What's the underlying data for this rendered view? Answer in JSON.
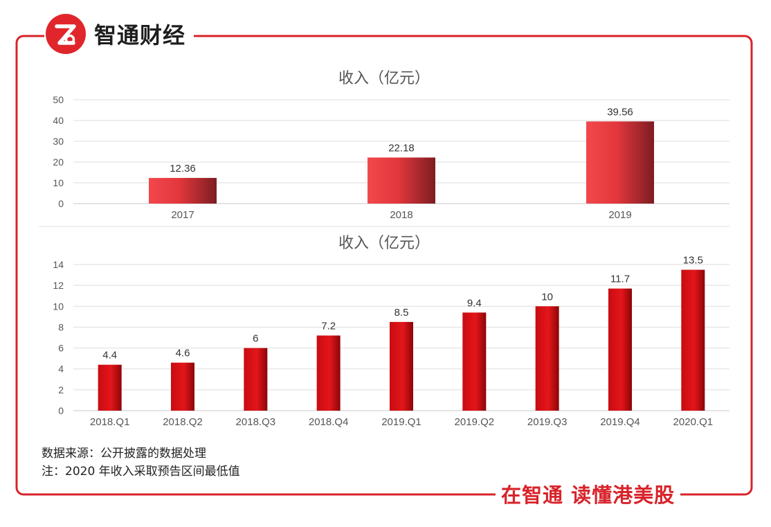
{
  "brand": {
    "name": "智通财经",
    "logo_glyph": "Z",
    "slogan": "在智通 读懂港美股",
    "accent": "#d8232a"
  },
  "notes": {
    "source": "数据来源：公开披露的数据处理",
    "note": "注：2020 年收入采取预告区间最低值"
  },
  "chart_data": [
    {
      "type": "bar",
      "title": "收入（亿元）",
      "categories": [
        "2017",
        "2018",
        "2019"
      ],
      "values": [
        12.36,
        22.18,
        39.56
      ],
      "value_labels": [
        "12.36",
        "22.18",
        "39.56"
      ],
      "yticks": [
        "0",
        "10",
        "20",
        "30",
        "40",
        "50"
      ],
      "ylim": [
        0,
        50
      ],
      "grid": true,
      "xlabel": "",
      "ylabel": ""
    },
    {
      "type": "bar",
      "title": "收入（亿元）",
      "categories": [
        "2018.Q1",
        "2018.Q2",
        "2018.Q3",
        "2018.Q4",
        "2019.Q1",
        "2019.Q2",
        "2019.Q3",
        "2019.Q4",
        "2020.Q1"
      ],
      "values": [
        4.4,
        4.6,
        6,
        7.2,
        8.5,
        9.4,
        10,
        11.7,
        13.5
      ],
      "value_labels": [
        "4.4",
        "4.6",
        "6",
        "7.2",
        "8.5",
        "9.4",
        "10",
        "11.7",
        "13.5"
      ],
      "yticks": [
        "0",
        "2",
        "4",
        "6",
        "8",
        "10",
        "12",
        "14"
      ],
      "ylim": [
        0,
        14
      ],
      "grid": true,
      "xlabel": "",
      "ylabel": ""
    }
  ]
}
